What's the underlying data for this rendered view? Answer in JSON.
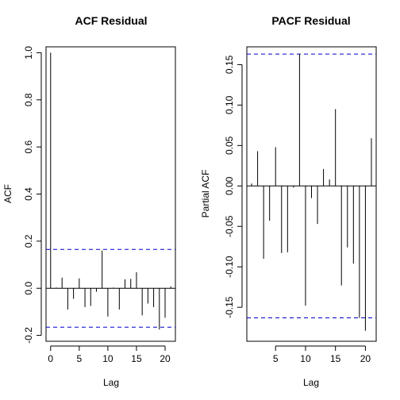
{
  "chart_data": [
    {
      "type": "bar",
      "title": "ACF Residual",
      "xlabel": "Lag",
      "ylabel": "ACF",
      "xlim": [
        -0.8,
        21.8
      ],
      "ylim": [
        -0.225,
        1.025
      ],
      "xticks": [
        0,
        5,
        10,
        15,
        20
      ],
      "yticks": [
        -0.2,
        0.0,
        0.2,
        0.4,
        0.6,
        0.8,
        1.0
      ],
      "ytick_labels": [
        "-0.2",
        "0.0",
        "0.2",
        "0.4",
        "0.6",
        "0.8",
        "1.0"
      ],
      "confidence": [
        0.165,
        -0.165
      ],
      "lags": [
        0,
        1,
        2,
        3,
        4,
        5,
        6,
        7,
        8,
        9,
        10,
        11,
        12,
        13,
        14,
        15,
        16,
        17,
        18,
        19,
        20,
        21
      ],
      "values": [
        1.0,
        0.003,
        0.045,
        -0.09,
        -0.045,
        0.042,
        -0.08,
        -0.075,
        -0.015,
        0.16,
        -0.12,
        0.003,
        -0.09,
        0.038,
        0.04,
        0.068,
        -0.115,
        -0.065,
        -0.08,
        -0.175,
        -0.125,
        0.008
      ]
    },
    {
      "type": "bar",
      "title": "PACF Residual",
      "xlabel": "Lag",
      "ylabel": "Partial ACF",
      "xlim": [
        0.2,
        21.8
      ],
      "ylim": [
        -0.192,
        0.172
      ],
      "xticks": [
        5,
        10,
        15,
        20
      ],
      "yticks": [
        -0.15,
        -0.1,
        -0.05,
        0.0,
        0.05,
        0.1,
        0.15
      ],
      "ytick_labels": [
        "-0.15",
        "-0.10",
        "-0.05",
        "0.00",
        "0.05",
        "0.10",
        "0.15"
      ],
      "confidence": [
        0.163,
        -0.163
      ],
      "lags": [
        1,
        2,
        3,
        4,
        5,
        6,
        7,
        8,
        9,
        10,
        11,
        12,
        13,
        14,
        15,
        16,
        17,
        18,
        19,
        20,
        21
      ],
      "values": [
        0.003,
        0.043,
        -0.09,
        -0.043,
        0.048,
        -0.083,
        -0.082,
        -0.002,
        0.163,
        -0.148,
        -0.015,
        -0.047,
        0.021,
        0.008,
        0.095,
        -0.123,
        -0.076,
        -0.096,
        -0.163,
        -0.179,
        0.059
      ]
    }
  ]
}
